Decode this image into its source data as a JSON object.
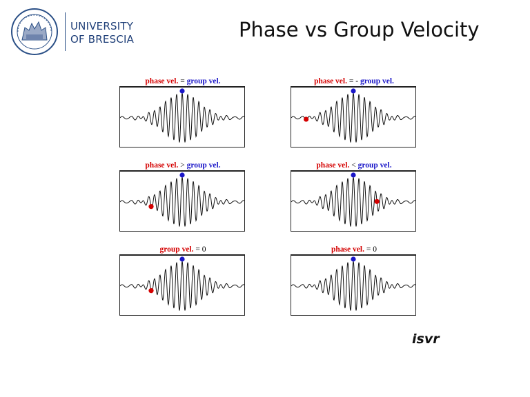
{
  "logo": {
    "line1": "UNIVERSITY",
    "line2": "OF BRESCIA",
    "brand_color": "#1f3f78",
    "seal_icon": "university-seal-icon"
  },
  "title": "Phase vs Group Velocity",
  "colors": {
    "phase": "#d40000",
    "group": "#1a16c8"
  },
  "panels": [
    {
      "caption": {
        "left": "phase vel.",
        "op": "=",
        "right": "group vel."
      },
      "group_dot": 0.5,
      "phase_dot": null
    },
    {
      "caption": {
        "left": "phase vel.",
        "op": "= -",
        "right": "group vel."
      },
      "group_dot": 0.5,
      "phase_dot": 0.12
    },
    {
      "caption": {
        "left": "phase vel.",
        "op": ">",
        "right": "group vel."
      },
      "group_dot": 0.5,
      "phase_dot": 0.25
    },
    {
      "caption": {
        "left": "phase vel.",
        "op": "<",
        "right": "group vel."
      },
      "group_dot": 0.5,
      "phase_dot": 0.69
    },
    {
      "caption": {
        "left": "group vel.",
        "op": "= 0",
        "right": ""
      },
      "group_dot": 0.5,
      "phase_dot": 0.25
    },
    {
      "caption": {
        "left": "phase vel.",
        "op": "= 0",
        "right": ""
      },
      "group_dot": 0.5,
      "phase_dot": null
    }
  ],
  "footer": {
    "logo_text": "isvr"
  }
}
